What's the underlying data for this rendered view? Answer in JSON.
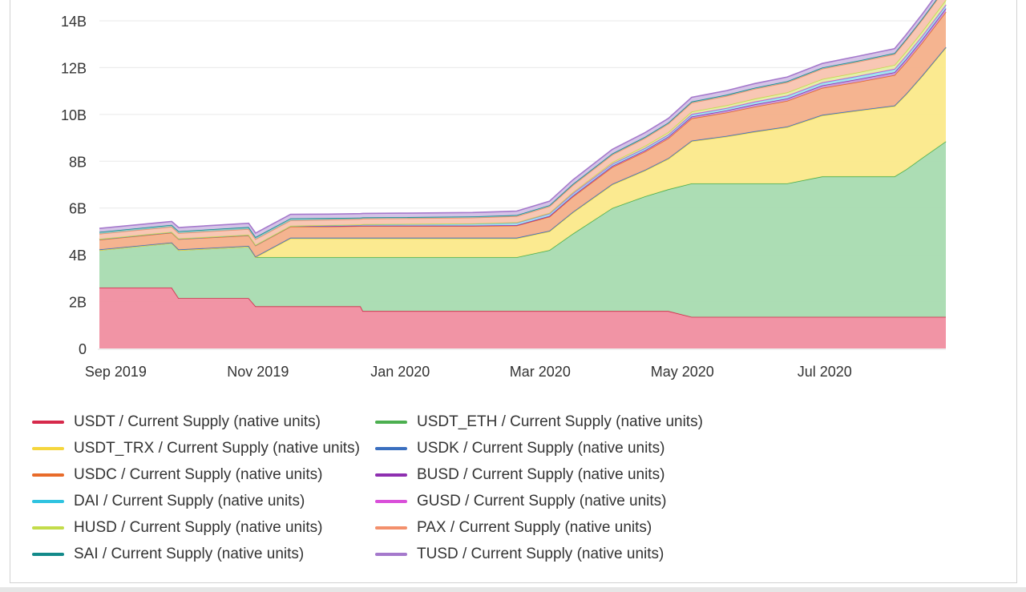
{
  "chart_data": {
    "type": "area",
    "stacked": true,
    "xlabel": "",
    "ylabel": "",
    "ylim": [
      0,
      15
    ],
    "yunit": "B",
    "x_range": [
      "2019-08-25",
      "2020-08-22"
    ],
    "yticks": [
      {
        "value": 0,
        "label": "0"
      },
      {
        "value": 2,
        "label": "2B"
      },
      {
        "value": 4,
        "label": "4B"
      },
      {
        "value": 6,
        "label": "6B"
      },
      {
        "value": 8,
        "label": "8B"
      },
      {
        "value": 10,
        "label": "10B"
      },
      {
        "value": 12,
        "label": "12B"
      },
      {
        "value": 14,
        "label": "14B"
      }
    ],
    "xticks": [
      {
        "date": "2019-09-01",
        "label": "Sep 2019"
      },
      {
        "date": "2019-11-01",
        "label": "Nov 2019"
      },
      {
        "date": "2020-01-01",
        "label": "Jan 2020"
      },
      {
        "date": "2020-03-01",
        "label": "Mar 2020"
      },
      {
        "date": "2020-05-01",
        "label": "May 2020"
      },
      {
        "date": "2020-07-01",
        "label": "Jul 2020"
      }
    ],
    "x": [
      "2019-08-25",
      "2019-09-25",
      "2019-09-28",
      "2019-10-28",
      "2019-10-31",
      "2019-11-15",
      "2019-12-01",
      "2019-12-15",
      "2019-12-16",
      "2020-01-01",
      "2020-02-01",
      "2020-02-20",
      "2020-03-05",
      "2020-03-15",
      "2020-04-01",
      "2020-04-15",
      "2020-04-25",
      "2020-05-05",
      "2020-05-20",
      "2020-06-01",
      "2020-06-15",
      "2020-06-30",
      "2020-07-15",
      "2020-07-31",
      "2020-08-05",
      "2020-08-12",
      "2020-08-22"
    ],
    "series": [
      {
        "name": "USDT / Current Supply (native units)",
        "color": "#d6294b",
        "fill": "#f08ea0",
        "values": [
          2.6,
          2.6,
          2.15,
          2.15,
          1.8,
          1.8,
          1.8,
          1.8,
          1.6,
          1.6,
          1.6,
          1.6,
          1.6,
          1.6,
          1.6,
          1.6,
          1.6,
          1.35,
          1.35,
          1.35,
          1.35,
          1.35,
          1.35,
          1.35,
          1.35,
          1.35,
          1.35
        ]
      },
      {
        "name": "USDT_ETH / Current Supply (native units)",
        "color": "#4caf50",
        "fill": "#a8dbb0",
        "values": [
          1.6,
          1.9,
          2.05,
          2.2,
          2.1,
          2.1,
          2.1,
          2.1,
          2.3,
          2.3,
          2.3,
          2.3,
          2.6,
          3.3,
          4.4,
          4.9,
          5.2,
          5.7,
          5.7,
          5.7,
          5.7,
          6.0,
          6.0,
          6.0,
          6.3,
          6.8,
          7.5
        ]
      },
      {
        "name": "USDT_TRX / Current Supply (native units)",
        "color": "#f5d63d",
        "fill": "#fbe98a",
        "values": [
          0.0,
          0.0,
          0.0,
          0.0,
          0.0,
          0.8,
          0.8,
          0.8,
          0.8,
          0.8,
          0.8,
          0.8,
          0.8,
          0.9,
          1.0,
          1.1,
          1.3,
          1.8,
          2.0,
          2.2,
          2.4,
          2.6,
          2.8,
          3.0,
          3.2,
          3.5,
          4.0
        ]
      },
      {
        "name": "USDK / Current Supply (native units)",
        "color": "#3a6fbf",
        "fill": "#9fb9e3",
        "values": [
          0.03,
          0.03,
          0.03,
          0.03,
          0.03,
          0.03,
          0.03,
          0.03,
          0.03,
          0.03,
          0.03,
          0.03,
          0.03,
          0.03,
          0.03,
          0.03,
          0.03,
          0.03,
          0.03,
          0.03,
          0.03,
          0.03,
          0.03,
          0.03,
          0.03,
          0.03,
          0.03
        ]
      },
      {
        "name": "USDC / Current Supply (native units)",
        "color": "#e86b2a",
        "fill": "#f4b08a",
        "values": [
          0.42,
          0.42,
          0.44,
          0.45,
          0.47,
          0.48,
          0.48,
          0.5,
          0.5,
          0.5,
          0.5,
          0.52,
          0.6,
          0.65,
          0.72,
          0.78,
          0.85,
          0.95,
          1.0,
          1.05,
          1.1,
          1.15,
          1.2,
          1.3,
          1.35,
          1.4,
          1.5
        ]
      },
      {
        "name": "BUSD / Current Supply (native units)",
        "color": "#8e2fb0",
        "fill": "#c99ad9",
        "values": [
          0.02,
          0.02,
          0.02,
          0.02,
          0.02,
          0.02,
          0.02,
          0.02,
          0.02,
          0.02,
          0.02,
          0.02,
          0.03,
          0.04,
          0.05,
          0.06,
          0.07,
          0.08,
          0.09,
          0.1,
          0.1,
          0.11,
          0.12,
          0.12,
          0.13,
          0.14,
          0.15
        ]
      },
      {
        "name": "DAI / Current Supply (native units)",
        "color": "#2fc3e0",
        "fill": "#a0e2ef",
        "values": [
          0.0,
          0.0,
          0.0,
          0.0,
          0.0,
          0.0,
          0.03,
          0.04,
          0.05,
          0.06,
          0.08,
          0.1,
          0.1,
          0.1,
          0.09,
          0.09,
          0.09,
          0.1,
          0.1,
          0.11,
          0.12,
          0.12,
          0.13,
          0.14,
          0.15,
          0.15,
          0.15
        ]
      },
      {
        "name": "GUSD / Current Supply (native units)",
        "color": "#d94fd9",
        "fill": "#eaa8ea",
        "values": [
          0.01,
          0.01,
          0.01,
          0.01,
          0.01,
          0.01,
          0.01,
          0.01,
          0.01,
          0.01,
          0.01,
          0.01,
          0.01,
          0.01,
          0.01,
          0.01,
          0.01,
          0.01,
          0.01,
          0.01,
          0.01,
          0.01,
          0.01,
          0.01,
          0.01,
          0.01,
          0.01
        ]
      },
      {
        "name": "HUSD / Current Supply (native units)",
        "color": "#c3dc4a",
        "fill": "#e3eea6",
        "values": [
          0.0,
          0.0,
          0.0,
          0.0,
          0.0,
          0.0,
          0.0,
          0.0,
          0.0,
          0.0,
          0.0,
          0.01,
          0.02,
          0.04,
          0.06,
          0.08,
          0.09,
          0.1,
          0.11,
          0.12,
          0.13,
          0.14,
          0.15,
          0.16,
          0.17,
          0.18,
          0.2
        ]
      },
      {
        "name": "PAX / Current Supply (native units)",
        "color": "#f3906c",
        "fill": "#f8c4b0",
        "values": [
          0.22,
          0.22,
          0.23,
          0.24,
          0.24,
          0.23,
          0.23,
          0.23,
          0.24,
          0.24,
          0.25,
          0.26,
          0.28,
          0.3,
          0.32,
          0.34,
          0.36,
          0.38,
          0.4,
          0.42,
          0.43,
          0.44,
          0.45,
          0.46,
          0.48,
          0.5,
          0.52
        ]
      },
      {
        "name": "SAI / Current Supply (native units)",
        "color": "#138a8a",
        "fill": "#8cc6c6",
        "values": [
          0.08,
          0.08,
          0.08,
          0.09,
          0.09,
          0.09,
          0.07,
          0.06,
          0.05,
          0.05,
          0.05,
          0.05,
          0.05,
          0.05,
          0.05,
          0.05,
          0.05,
          0.05,
          0.05,
          0.05,
          0.05,
          0.05,
          0.05,
          0.05,
          0.05,
          0.05,
          0.05
        ]
      },
      {
        "name": "TUSD / Current Supply (native units)",
        "color": "#a579cc",
        "fill": "#d3c0e6",
        "values": [
          0.15,
          0.15,
          0.16,
          0.16,
          0.17,
          0.17,
          0.17,
          0.17,
          0.17,
          0.17,
          0.17,
          0.17,
          0.17,
          0.18,
          0.18,
          0.18,
          0.18,
          0.18,
          0.18,
          0.18,
          0.18,
          0.18,
          0.19,
          0.19,
          0.19,
          0.19,
          0.2
        ]
      }
    ],
    "stack_order": [
      "USDT / Current Supply (native units)",
      "USDT_ETH / Current Supply (native units)",
      "USDT_TRX / Current Supply (native units)",
      "USDK / Current Supply (native units)",
      "USDC / Current Supply (native units)",
      "BUSD / Current Supply (native units)",
      "DAI / Current Supply (native units)",
      "GUSD / Current Supply (native units)",
      "HUSD / Current Supply (native units)",
      "PAX / Current Supply (native units)",
      "SAI / Current Supply (native units)",
      "TUSD / Current Supply (native units)"
    ],
    "legend": {
      "placement": "bottom",
      "columns": [
        [
          "USDT / Current Supply (native units)",
          "USDT_TRX / Current Supply (native units)",
          "USDC / Current Supply (native units)",
          "DAI / Current Supply (native units)",
          "HUSD / Current Supply (native units)",
          "SAI / Current Supply (native units)"
        ],
        [
          "USDT_ETH / Current Supply (native units)",
          "USDK / Current Supply (native units)",
          "BUSD / Current Supply (native units)",
          "GUSD / Current Supply (native units)",
          "PAX / Current Supply (native units)",
          "TUSD / Current Supply (native units)"
        ]
      ]
    },
    "grid": true
  }
}
